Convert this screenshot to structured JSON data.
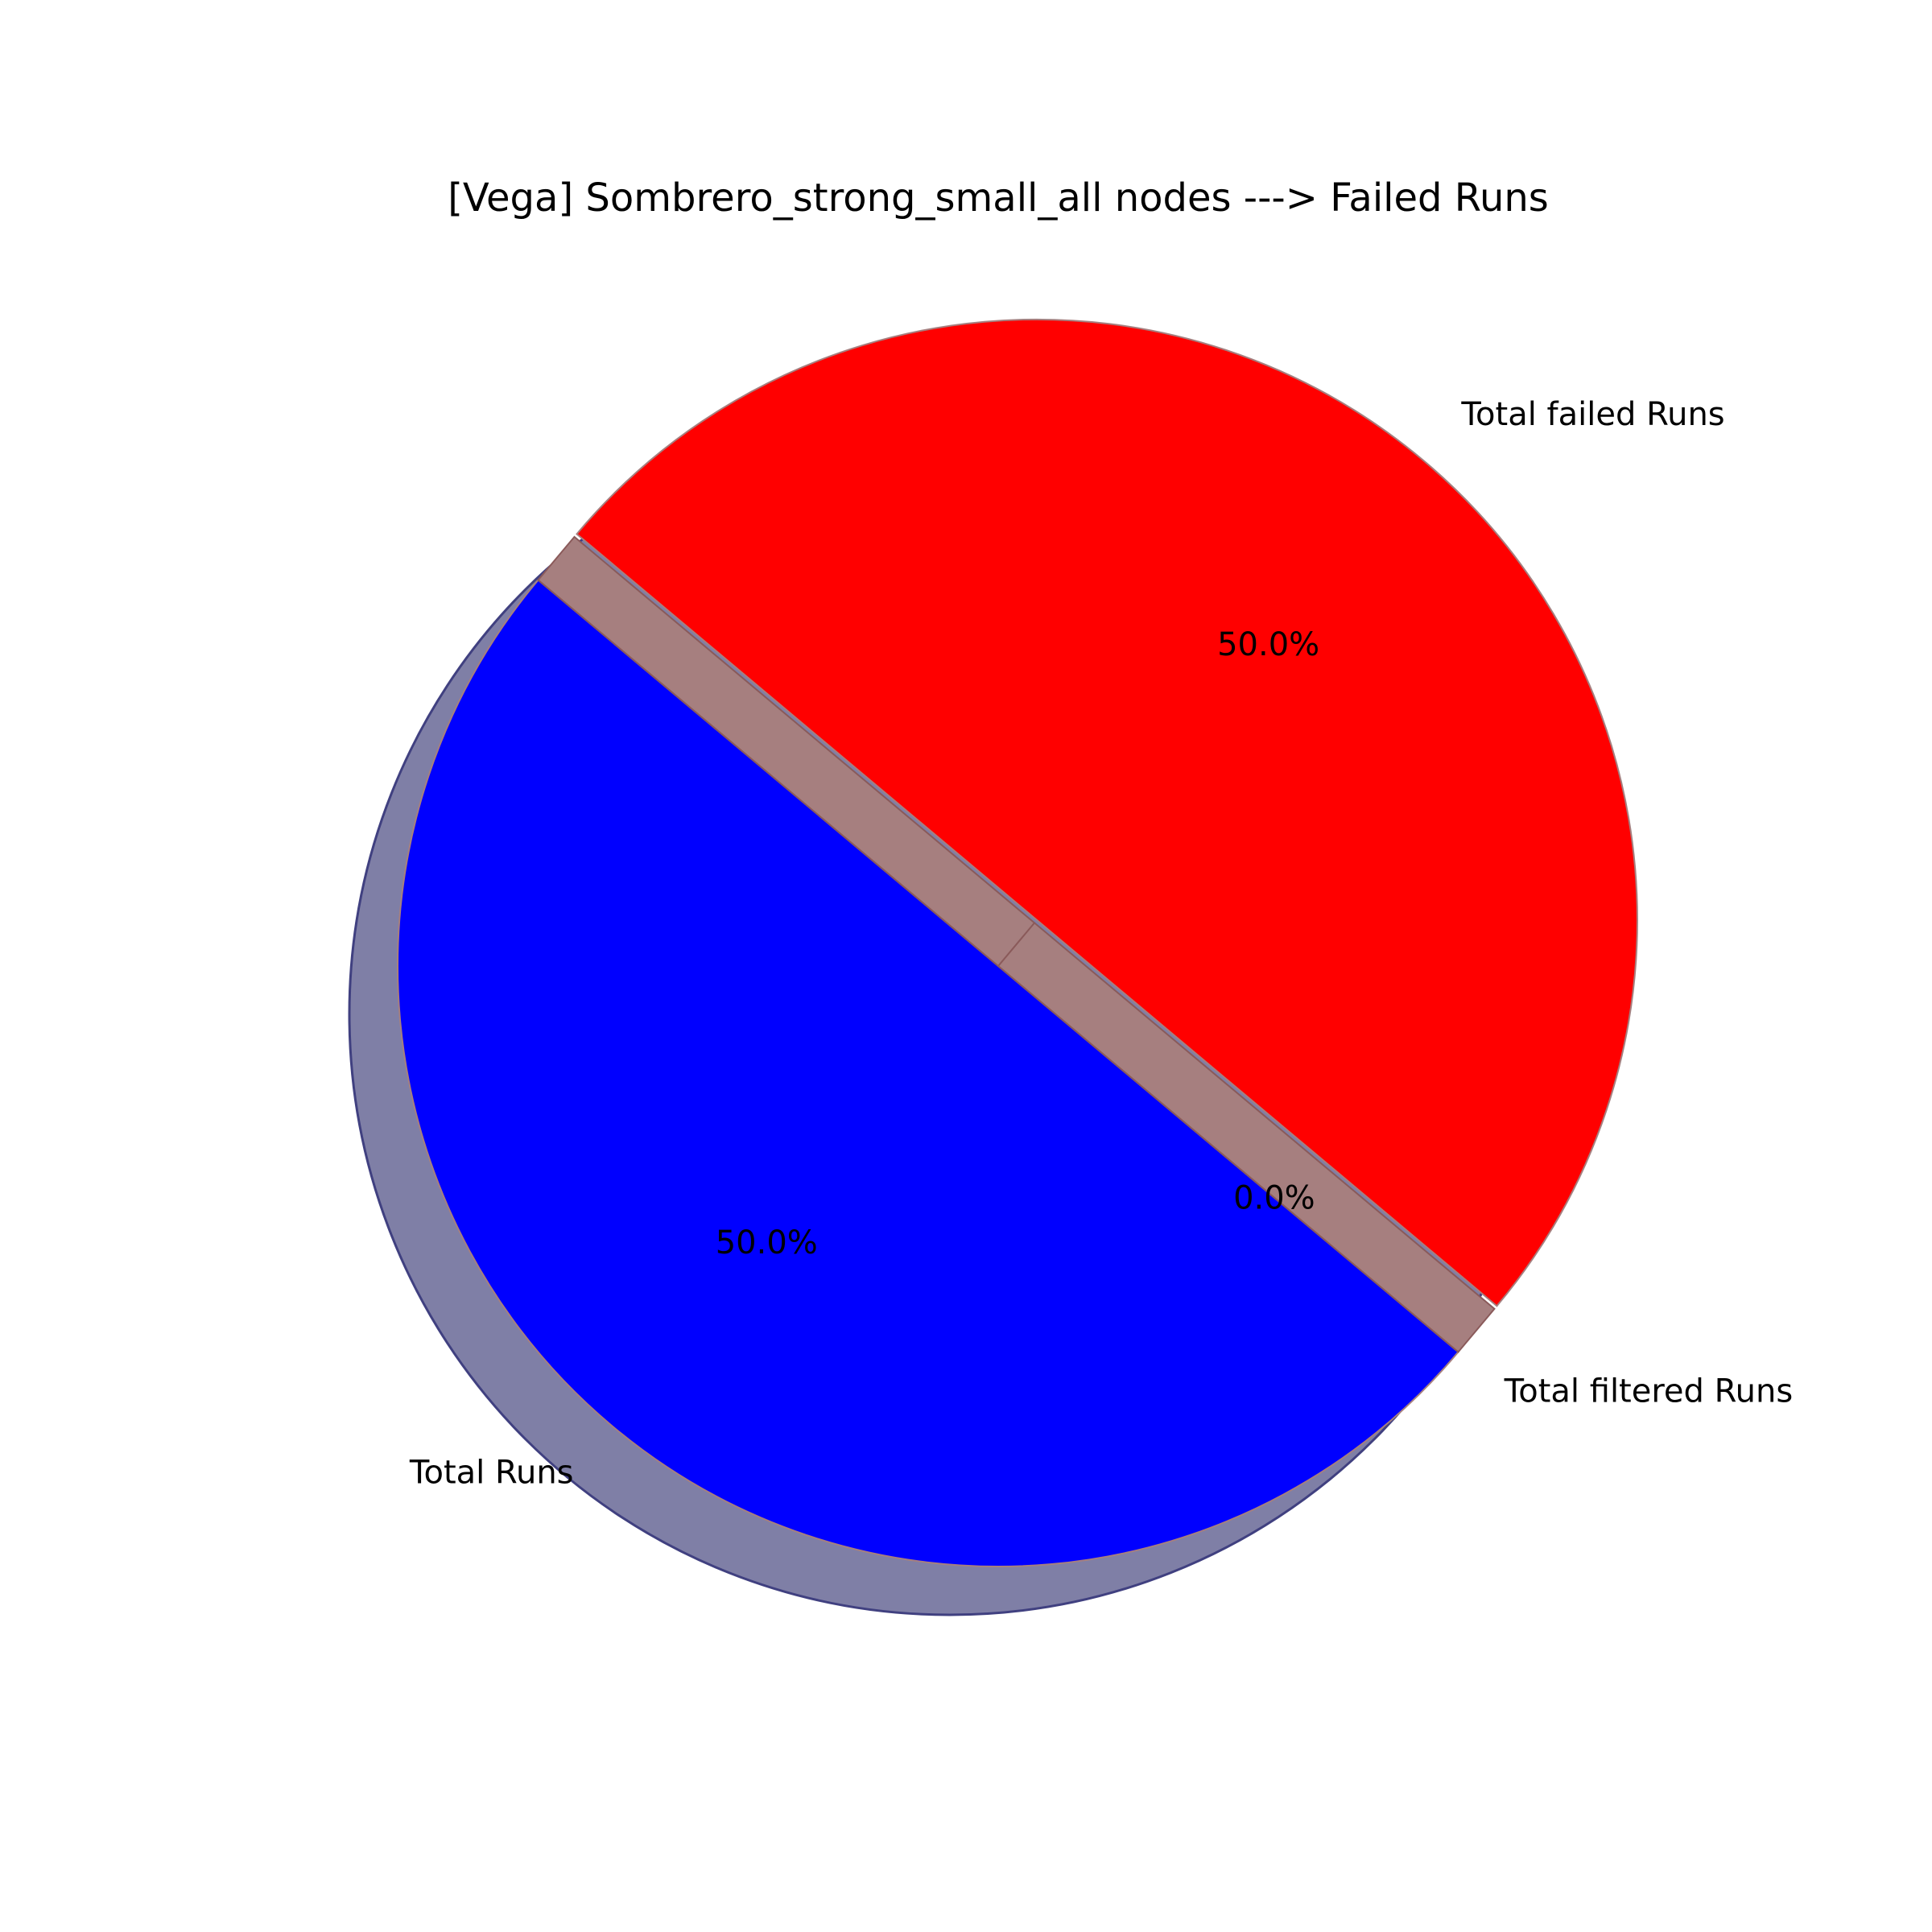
{
  "chart_data": {
    "type": "pie",
    "title": "[Vega] Sombrero_strong_small_all nodes ---> Failed Runs",
    "start_angle_deg": 140,
    "direction": "counterclockwise",
    "shadow": true,
    "slices": [
      {
        "label": "Total Runs",
        "value": 1,
        "percent_label": "50.0%",
        "color": "#0000ff",
        "exploded": false
      },
      {
        "label": "Total filtered Runs",
        "value": 0,
        "percent_label": "0.0%",
        "color": "#a67f7f",
        "exploded": false
      },
      {
        "label": "Total failed Runs",
        "value": 1,
        "percent_label": "50.0%",
        "color": "#ff0000",
        "exploded": true
      }
    ],
    "shadow_color": "#7f7fa6",
    "edge_color": "#a67f7f"
  }
}
